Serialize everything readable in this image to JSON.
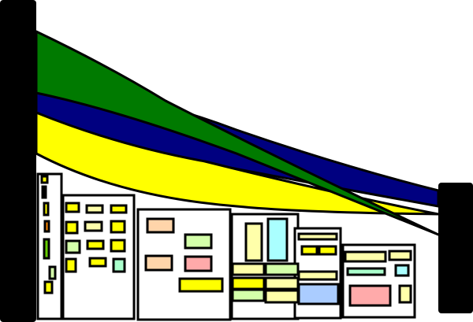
{
  "illustration": {
    "subject": "city-buildings-with-ribbons",
    "colors": {
      "ribbon_green": "#007a00",
      "ribbon_blue": "#000080",
      "ribbon_yellow": "#ffff00",
      "pillar": "#000000",
      "window_yellow": "#ffff00",
      "window_pale_yellow": "#ffffaa",
      "window_light_green": "#d4ffaa",
      "window_peach": "#ffd5aa",
      "window_pink": "#ffaaaa",
      "window_cyan": "#aaffff",
      "window_blue": "#aaccff",
      "window_mint": "#aaffcc"
    }
  }
}
